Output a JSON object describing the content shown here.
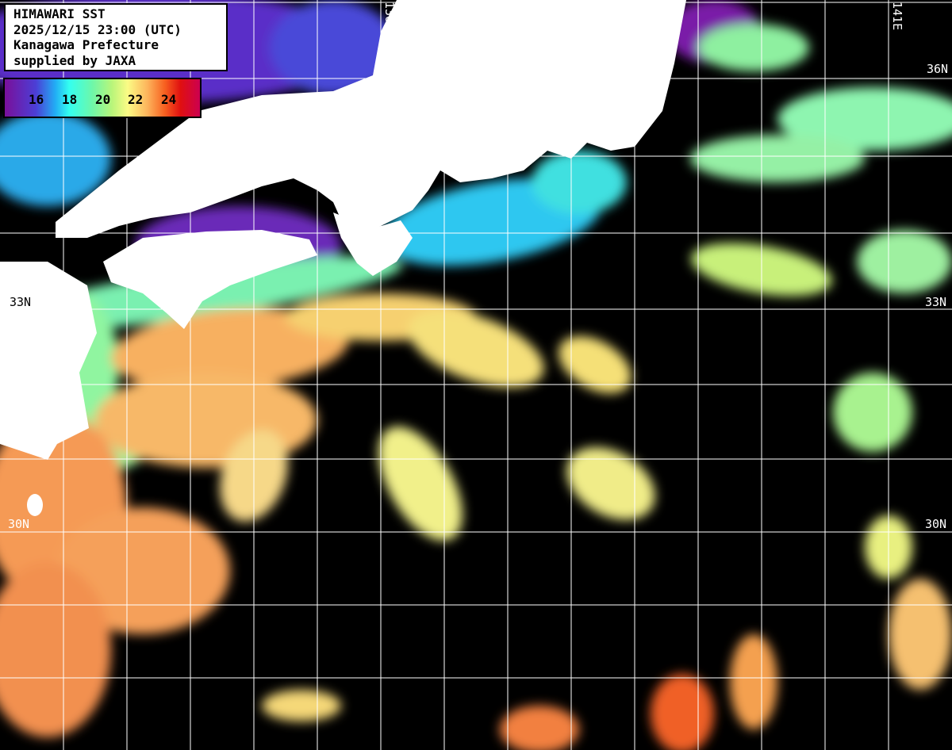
{
  "title_box": {
    "lines": [
      "HIMAWARI SST",
      "2025/12/15 23:00 (UTC)",
      "Kanagawa Prefecture",
      "supplied by JAXA"
    ]
  },
  "colorbar": {
    "ticks": [
      "16",
      "18",
      "20",
      "22",
      "24"
    ],
    "colors": [
      "#7a0f9a",
      "#4b3fd6",
      "#22aef5",
      "#33fff0",
      "#6ff7a8",
      "#b9f57a",
      "#fbfb85",
      "#fdb55c",
      "#f76020",
      "#e01010",
      "#cc0050"
    ]
  },
  "grid_labels": {
    "lon": [
      "136E",
      "141E"
    ],
    "lat_right": [
      "36N",
      "33N",
      "30N"
    ],
    "lat_left": [
      "33N",
      "30N"
    ]
  },
  "colors": {
    "land": "#ffffff",
    "no_data": "#000000",
    "grid": "#ffffff"
  }
}
